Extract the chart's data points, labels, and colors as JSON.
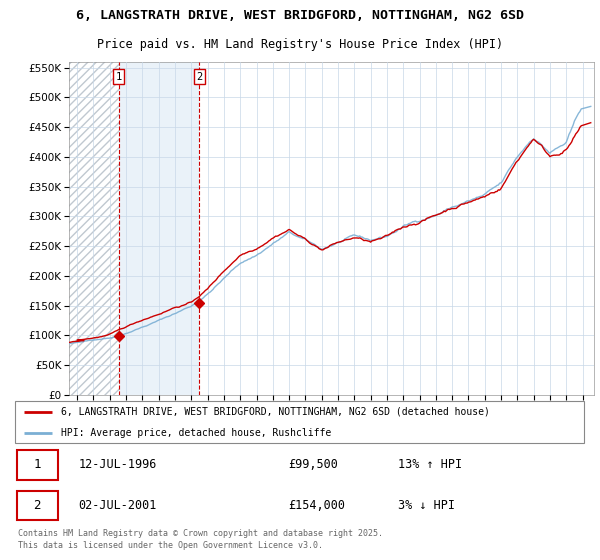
{
  "title": "6, LANGSTRATH DRIVE, WEST BRIDGFORD, NOTTINGHAM, NG2 6SD",
  "subtitle": "Price paid vs. HM Land Registry's House Price Index (HPI)",
  "legend_line1": "6, LANGSTRATH DRIVE, WEST BRIDGFORD, NOTTINGHAM, NG2 6SD (detached house)",
  "legend_line2": "HPI: Average price, detached house, Rushcliffe",
  "annotation1_label": "1",
  "annotation1_date": "12-JUL-1996",
  "annotation1_price": "£99,500",
  "annotation1_hpi": "13% ↑ HPI",
  "annotation2_label": "2",
  "annotation2_date": "02-JUL-2001",
  "annotation2_price": "£154,000",
  "annotation2_hpi": "3% ↓ HPI",
  "footnote": "Contains HM Land Registry data © Crown copyright and database right 2025.\nThis data is licensed under the Open Government Licence v3.0.",
  "sale1_year": 1996.54,
  "sale1_price": 99500,
  "sale2_year": 2001.5,
  "sale2_price": 154000,
  "hpi_color": "#7bafd4",
  "price_color": "#cc0000",
  "vline_color": "#cc0000",
  "background_color": "#ffffff",
  "grid_color": "#c8d8e8",
  "ylim": [
    0,
    560000
  ],
  "xlim_start": 1993.5,
  "xlim_end": 2025.7,
  "yticks": [
    0,
    50000,
    100000,
    150000,
    200000,
    250000,
    300000,
    350000,
    400000,
    450000,
    500000,
    550000
  ],
  "xtick_start": 1994,
  "xtick_end": 2025
}
